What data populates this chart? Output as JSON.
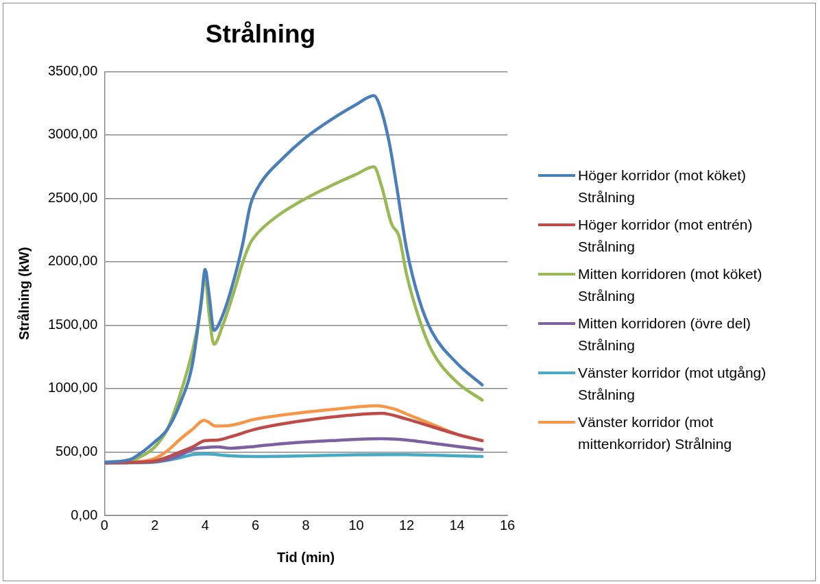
{
  "chart_data": {
    "type": "line",
    "title": "Strålning",
    "xlabel": "Tid (min)",
    "ylabel": "Strålning (kW)",
    "xlim": [
      0,
      16
    ],
    "xticks": [
      0,
      2,
      4,
      6,
      8,
      10,
      12,
      14,
      16
    ],
    "ylim": [
      0,
      3500
    ],
    "yticks": [
      {
        "value": 0,
        "label": "0,00"
      },
      {
        "value": 500,
        "label": "500,00"
      },
      {
        "value": 1000,
        "label": "1000,00"
      },
      {
        "value": 1500,
        "label": "1500,00"
      },
      {
        "value": 2000,
        "label": "2000,00"
      },
      {
        "value": 2500,
        "label": "2500,00"
      },
      {
        "value": 3000,
        "label": "3000,00"
      },
      {
        "value": 3500,
        "label": "3500,00"
      }
    ],
    "grid": "y",
    "legend": "right",
    "marker": "none",
    "line_style": "solid",
    "series": [
      {
        "name": "Höger korridor (mot köket) Strålning",
        "color": "#4a7ebb",
        "x": [
          0,
          1,
          1.5,
          2,
          2.5,
          3,
          3.5,
          3.85,
          4.0,
          4.15,
          4.35,
          4.7,
          5.2,
          5.5,
          5.8,
          6.2,
          7,
          8,
          9,
          10,
          10.7,
          10.9,
          11.3,
          11.6,
          12,
          12.5,
          13,
          14,
          15
        ],
        "values": [
          420,
          440,
          500,
          580,
          680,
          880,
          1200,
          1700,
          1940,
          1750,
          1460,
          1580,
          1900,
          2150,
          2450,
          2620,
          2800,
          2980,
          3120,
          3240,
          3310,
          3250,
          2950,
          2600,
          2100,
          1700,
          1450,
          1200,
          1030
        ]
      },
      {
        "name": "Höger korridor (mot entrén) Strålning",
        "color": "#be4b48",
        "x": [
          0,
          1,
          2,
          2.5,
          3,
          3.5,
          4,
          4.5,
          5,
          6,
          7,
          8,
          9,
          10,
          11,
          12,
          13,
          14,
          15
        ],
        "values": [
          415,
          418,
          430,
          460,
          500,
          540,
          590,
          595,
          620,
          680,
          720,
          750,
          775,
          795,
          805,
          760,
          700,
          640,
          590
        ]
      },
      {
        "name": "Mitten korridoren (mot köket) Strålning",
        "color": "#98b954",
        "x": [
          0,
          1,
          1.5,
          2,
          2.5,
          3,
          3.5,
          3.8,
          4.0,
          4.15,
          4.35,
          4.7,
          5.2,
          5.5,
          5.8,
          6.2,
          7,
          8,
          9,
          10,
          10.7,
          11,
          11.4,
          11.7,
          12,
          12.5,
          13,
          14,
          15
        ],
        "values": [
          420,
          430,
          470,
          540,
          680,
          950,
          1300,
          1600,
          1880,
          1600,
          1350,
          1500,
          1800,
          2000,
          2150,
          2250,
          2380,
          2500,
          2600,
          2690,
          2750,
          2600,
          2300,
          2200,
          1900,
          1550,
          1300,
          1050,
          910
        ]
      },
      {
        "name": "Mitten korridoren (övre del) Strålning",
        "color": "#7d60a0",
        "x": [
          0,
          1,
          2,
          2.5,
          3,
          3.5,
          4,
          4.5,
          5,
          6,
          7,
          8,
          9,
          10,
          11,
          12,
          13,
          14,
          15
        ],
        "values": [
          415,
          418,
          425,
          440,
          475,
          520,
          535,
          540,
          530,
          545,
          565,
          580,
          590,
          600,
          605,
          595,
          570,
          545,
          520
        ]
      },
      {
        "name": "Vänster korridor (mot utgång) Strålning",
        "color": "#46aac5",
        "x": [
          0,
          1,
          2,
          2.5,
          3,
          3.5,
          4,
          5,
          6,
          8,
          10,
          11,
          12,
          13,
          14,
          15
        ],
        "values": [
          415,
          415,
          420,
          435,
          455,
          480,
          485,
          470,
          465,
          470,
          478,
          480,
          480,
          475,
          470,
          465
        ]
      },
      {
        "name": "Vänster korridor (mot mittenkorridor) Strålning",
        "color": "#f79646",
        "x": [
          0,
          1,
          2,
          2.5,
          3,
          3.5,
          3.95,
          4.1,
          4.4,
          5,
          6,
          7,
          8,
          9,
          10,
          10.8,
          11.5,
          12,
          13,
          14,
          15
        ],
        "values": [
          415,
          420,
          450,
          510,
          600,
          680,
          750,
          740,
          705,
          710,
          760,
          790,
          815,
          835,
          855,
          865,
          840,
          800,
          720,
          640,
          590
        ]
      }
    ]
  }
}
